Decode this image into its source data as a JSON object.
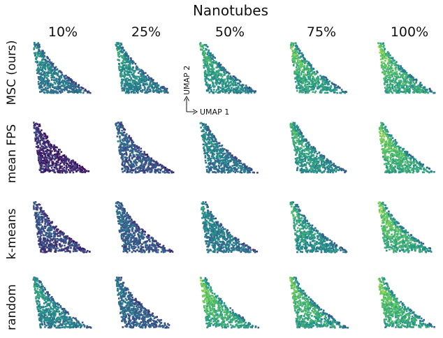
{
  "chart_data": {
    "type": "scatter",
    "title": "Nanotubes",
    "columns": [
      "10%",
      "25%",
      "50%",
      "75%",
      "100%"
    ],
    "rows": [
      "MSC (ours)",
      "mean FPS",
      "k-means",
      "random"
    ],
    "axis_labels": {
      "x": "UMAP 1",
      "y": "UMAP 2"
    },
    "colormap": [
      "#440154",
      "#3b528b",
      "#21918c",
      "#5ec962",
      "#fde725"
    ],
    "density_level": [
      [
        0.55,
        0.62,
        0.72,
        0.8,
        0.86
      ],
      [
        0.18,
        0.38,
        0.55,
        0.7,
        0.86
      ],
      [
        0.3,
        0.4,
        0.56,
        0.7,
        0.86
      ],
      [
        0.62,
        0.44,
        0.84,
        0.82,
        0.86
      ]
    ]
  }
}
